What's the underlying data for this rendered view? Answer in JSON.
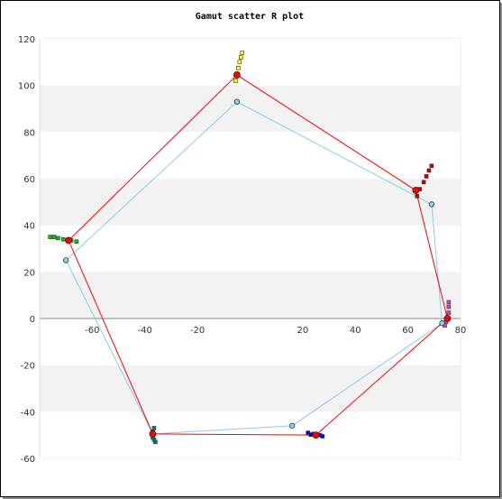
{
  "chart_data": {
    "type": "scatter",
    "title": "Gamut scatter R plot",
    "xlabel": "",
    "ylabel": "",
    "xlim": [
      -80,
      80
    ],
    "ylim": [
      -60,
      120
    ],
    "xticks": [
      -60,
      -40,
      -20,
      20,
      40,
      60,
      80
    ],
    "yticks": [
      -60,
      -40,
      -20,
      0,
      20,
      40,
      60,
      80,
      100,
      120
    ],
    "grid": "horizontal bands",
    "series": [
      {
        "color": "#ff0000",
        "marker": "circle",
        "closed": true,
        "points": [
          [
            -69,
            33.5
          ],
          [
            -5,
            104.5
          ],
          [
            63,
            55
          ],
          [
            75,
            0
          ],
          [
            25,
            -50
          ],
          [
            -37,
            -49.5
          ],
          [
            -69,
            33.5
          ]
        ]
      },
      {
        "color": "#87ceeb",
        "marker": "circle",
        "closed": true,
        "points": [
          [
            -70,
            25
          ],
          [
            -5,
            93
          ],
          [
            69,
            49
          ],
          [
            73,
            -2
          ],
          [
            16,
            -46
          ],
          [
            -37,
            -49.5
          ],
          [
            -70,
            25
          ]
        ]
      }
    ],
    "clusters": [
      {
        "color": "#ffff00",
        "points": [
          [
            -3,
            114
          ],
          [
            -3.5,
            112
          ],
          [
            -4,
            110
          ],
          [
            -4.5,
            107.5
          ],
          [
            -5,
            105
          ],
          [
            -5.5,
            102
          ]
        ]
      },
      {
        "color": "#cc0000",
        "points": [
          [
            69,
            65.5
          ],
          [
            68,
            63.5
          ],
          [
            67,
            61
          ],
          [
            66,
            58.5
          ],
          [
            64.5,
            55.5
          ],
          [
            63.5,
            52.5
          ]
        ]
      },
      {
        "color": "#cc44cc",
        "points": [
          [
            75.5,
            7
          ],
          [
            75.5,
            5
          ],
          [
            75.5,
            2.5
          ],
          [
            75.3,
            0
          ],
          [
            74.5,
            -1.5
          ],
          [
            74,
            -3
          ]
        ]
      },
      {
        "color": "#0000cc",
        "points": [
          [
            22,
            -49
          ],
          [
            24,
            -49.5
          ],
          [
            25.5,
            -50
          ],
          [
            26.5,
            -50
          ],
          [
            27.5,
            -50.5
          ],
          [
            23,
            -49.8
          ]
        ]
      },
      {
        "color": "#008080",
        "points": [
          [
            -36,
            -53
          ],
          [
            -36.5,
            -52
          ],
          [
            -37,
            -51
          ],
          [
            -37,
            -49.5
          ],
          [
            -37,
            -48.5
          ],
          [
            -36.5,
            -47
          ]
        ]
      },
      {
        "color": "#00cc00",
        "points": [
          [
            -76,
            35
          ],
          [
            -74.5,
            35
          ],
          [
            -73,
            34.5
          ],
          [
            -71,
            34
          ],
          [
            -68,
            33.5
          ],
          [
            -66,
            33
          ]
        ]
      }
    ]
  }
}
